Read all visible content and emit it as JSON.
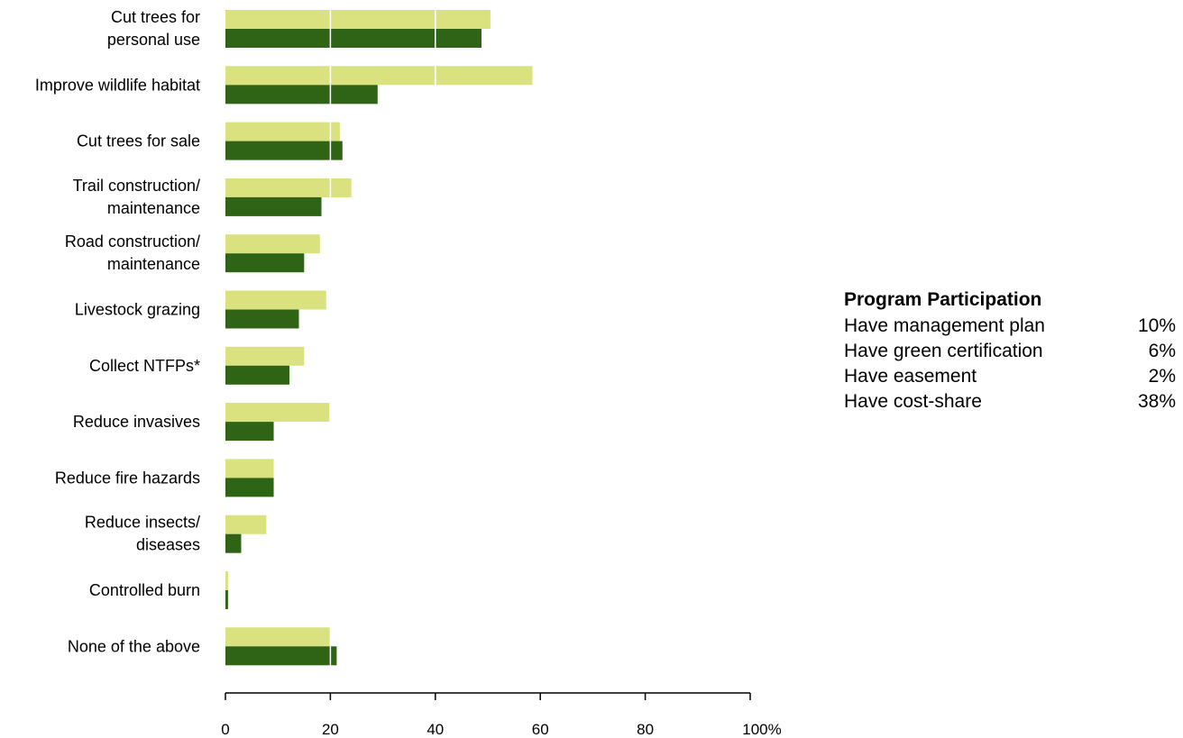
{
  "colors": {
    "light_series": "#d9e27e",
    "dark_series": "#2f6416",
    "gridline": "#ffffff",
    "axis": "#000000"
  },
  "chart_data": {
    "type": "bar",
    "orientation": "horizontal",
    "categories": [
      "Cut trees for personal use",
      "Improve wildlife habitat",
      "Cut trees for sale",
      "Trail construction/ maintenance",
      "Road construction/ maintenance",
      "Livestock grazing",
      "Collect NTFPs*",
      "Reduce invasives",
      "Reduce fire hazards",
      "Reduce insects/ diseases",
      "Controlled burn",
      "None of the above"
    ],
    "series": [
      {
        "values": [
          50.5,
          58.5,
          21.8,
          24.0,
          18.0,
          19.2,
          15.0,
          19.8,
          9.2,
          7.8,
          0.5,
          20.0
        ]
      },
      {
        "values": [
          48.8,
          29.0,
          22.3,
          18.3,
          15.0,
          14.0,
          12.2,
          9.2,
          9.2,
          3.0,
          0.5,
          21.2
        ]
      }
    ],
    "xlim": [
      0,
      100
    ],
    "xticks": [
      0,
      20,
      40,
      60,
      80,
      100
    ],
    "xtick_labels": [
      "0",
      "20",
      "40",
      "60",
      "80",
      "100%"
    ],
    "grid": "vertical white lines over bars"
  },
  "program_participation": {
    "title": "Program Participation",
    "rows": [
      {
        "label": "Have management plan",
        "value": "10%"
      },
      {
        "label": "Have green certification",
        "value": "6%"
      },
      {
        "label": "Have easement",
        "value": "2%"
      },
      {
        "label": "Have cost-share",
        "value": "38%"
      }
    ]
  }
}
